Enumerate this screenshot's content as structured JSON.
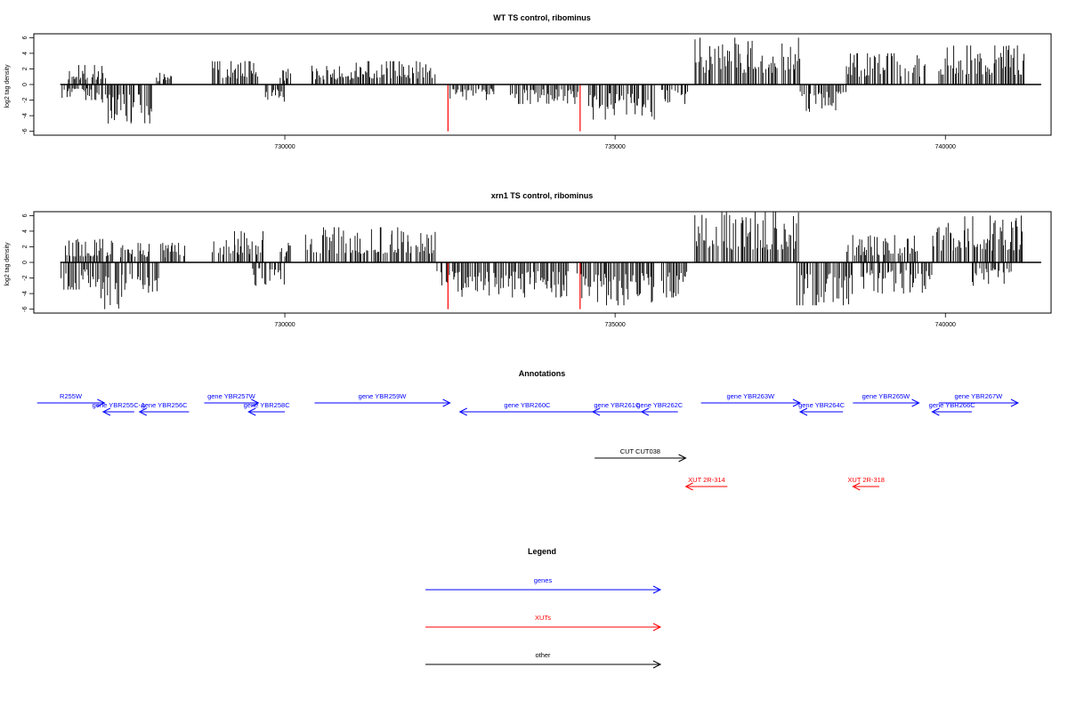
{
  "chart_data": [
    {
      "type": "bar",
      "title": "WT TS control, ribominus",
      "ylabel": "log2 tag density",
      "xlabel": "",
      "xlim": [
        726200,
        741600
      ],
      "ylim": [
        -6.5,
        6.5
      ],
      "x_ticks": [
        730000,
        735000,
        740000
      ],
      "x_tick_labels": [
        "730000",
        "735000",
        "740000"
      ],
      "y_ticks": [
        -6,
        -4,
        -2,
        0,
        2,
        4,
        6
      ],
      "y_tick_labels": [
        "-6",
        "-4",
        "-2",
        "0",
        "2",
        "4",
        "6"
      ],
      "baseline": {
        "from": 726600,
        "to": 741450
      },
      "series": [
        {
          "strand": "plus",
          "segments": [
            {
              "from": 726700,
              "to": 727300,
              "max": 2.5
            },
            {
              "from": 728050,
              "to": 728300,
              "max": 1.5
            },
            {
              "from": 728900,
              "to": 729600,
              "max": 3.0
            },
            {
              "from": 729900,
              "to": 730100,
              "max": 2.0
            },
            {
              "from": 730400,
              "to": 731000,
              "max": 2.5
            },
            {
              "from": 731000,
              "to": 732300,
              "max": 3.0
            },
            {
              "from": 736200,
              "to": 737800,
              "max": 6.0
            },
            {
              "from": 738500,
              "to": 739700,
              "max": 4.0
            },
            {
              "from": 739900,
              "to": 741200,
              "max": 5.0
            }
          ]
        },
        {
          "strand": "minus",
          "segments": [
            {
              "from": 726600,
              "to": 727200,
              "max": 2.0
            },
            {
              "from": 727200,
              "to": 728000,
              "max": 5.0
            },
            {
              "from": 729700,
              "to": 730000,
              "max": 2.5
            },
            {
              "from": 732500,
              "to": 733200,
              "max": 2.0
            },
            {
              "from": 733400,
              "to": 734500,
              "max": 2.5
            },
            {
              "from": 734600,
              "to": 735600,
              "max": 4.5
            },
            {
              "from": 735700,
              "to": 736100,
              "max": 2.5
            },
            {
              "from": 737800,
              "to": 738500,
              "max": 3.5
            }
          ]
        }
      ],
      "red_lines": [
        {
          "x": 732470,
          "y": -6.0
        },
        {
          "x": 734470,
          "y": -6.0
        }
      ],
      "seed": 11
    },
    {
      "type": "bar",
      "title": "xrn1 TS control, ribominus",
      "ylabel": "log2 tag density",
      "xlabel": "",
      "xlim": [
        726200,
        741600
      ],
      "ylim": [
        -6.5,
        6.5
      ],
      "x_ticks": [
        730000,
        735000,
        740000
      ],
      "x_tick_labels": [
        "730000",
        "735000",
        "740000"
      ],
      "y_ticks": [
        -6,
        -4,
        -2,
        0,
        2,
        4,
        6
      ],
      "y_tick_labels": [
        "-6",
        "-4",
        "-2",
        "0",
        "2",
        "4",
        "6"
      ],
      "baseline": {
        "from": 726600,
        "to": 741450
      },
      "series": [
        {
          "strand": "plus",
          "segments": [
            {
              "from": 726650,
              "to": 727400,
              "max": 3.0
            },
            {
              "from": 727500,
              "to": 728000,
              "max": 2.5
            },
            {
              "from": 728100,
              "to": 728500,
              "max": 2.5
            },
            {
              "from": 728900,
              "to": 729700,
              "max": 4.0
            },
            {
              "from": 729900,
              "to": 730100,
              "max": 2.5
            },
            {
              "from": 730300,
              "to": 732300,
              "max": 4.5
            },
            {
              "from": 736200,
              "to": 737800,
              "max": 6.5
            },
            {
              "from": 738500,
              "to": 739600,
              "max": 3.5
            },
            {
              "from": 739800,
              "to": 741200,
              "max": 6.0
            }
          ]
        },
        {
          "strand": "minus",
          "segments": [
            {
              "from": 726600,
              "to": 727100,
              "max": 3.5
            },
            {
              "from": 727100,
              "to": 728100,
              "max": 6.0
            },
            {
              "from": 729500,
              "to": 730000,
              "max": 3.0
            },
            {
              "from": 732300,
              "to": 734300,
              "max": 4.5
            },
            {
              "from": 734400,
              "to": 735600,
              "max": 5.5
            },
            {
              "from": 735700,
              "to": 736100,
              "max": 4.5
            },
            {
              "from": 737700,
              "to": 738600,
              "max": 5.5
            },
            {
              "from": 738700,
              "to": 739800,
              "max": 4.0
            },
            {
              "from": 740400,
              "to": 741000,
              "max": 3.0
            }
          ]
        }
      ],
      "red_lines": [
        {
          "x": 732470,
          "y": -6.0
        },
        {
          "x": 734470,
          "y": -6.0
        }
      ],
      "seed": 29
    }
  ],
  "annotations": {
    "title": "Annotations",
    "xlim": [
      726200,
      741600
    ],
    "features": [
      {
        "label": "R255W",
        "from": 726250,
        "to": 727270,
        "strand": "+",
        "track": 0,
        "color": "#0000ff"
      },
      {
        "label": "gene YBR255C-A",
        "from": 727250,
        "to": 727720,
        "strand": "-",
        "track": 1,
        "color": "#0000ff"
      },
      {
        "label": "gene YBR256C",
        "from": 727800,
        "to": 728550,
        "strand": "-",
        "track": 1,
        "color": "#0000ff"
      },
      {
        "label": "gene YBR257W",
        "from": 728780,
        "to": 729600,
        "strand": "+",
        "track": 0,
        "color": "#0000ff"
      },
      {
        "label": "gene YBR258C",
        "from": 729450,
        "to": 730000,
        "strand": "-",
        "track": 1,
        "color": "#0000ff"
      },
      {
        "label": "gene YBR259W",
        "from": 730450,
        "to": 732500,
        "strand": "+",
        "track": 0,
        "color": "#0000ff"
      },
      {
        "label": "gene YBR260C",
        "from": 732650,
        "to": 734690,
        "strand": "-",
        "track": 2,
        "color": "#0000ff"
      },
      {
        "label": "gene YBR261C",
        "from": 734660,
        "to": 735400,
        "strand": "-",
        "track": 1,
        "color": "#0000ff"
      },
      {
        "label": "gene YBR262C",
        "from": 735400,
        "to": 735950,
        "strand": "-",
        "track": 1,
        "color": "#0000ff"
      },
      {
        "label": "gene YBR263W",
        "from": 736300,
        "to": 737800,
        "strand": "+",
        "track": 0,
        "color": "#0000ff"
      },
      {
        "label": "gene YBR264C",
        "from": 737800,
        "to": 738450,
        "strand": "-",
        "track": 1,
        "color": "#0000ff"
      },
      {
        "label": "gene YBR265W",
        "from": 738600,
        "to": 739600,
        "strand": "+",
        "track": 0,
        "color": "#0000ff"
      },
      {
        "label": "gene YBR266C",
        "from": 739800,
        "to": 740400,
        "strand": "-",
        "track": 1,
        "color": "#0000ff"
      },
      {
        "label": "gene YBR267W",
        "from": 739900,
        "to": 741100,
        "strand": "+",
        "track": 0,
        "color": "#0000ff"
      },
      {
        "label": "CUT CUT038",
        "from": 734690,
        "to": 736070,
        "strand": "+",
        "track": 4,
        "color": "#000000"
      },
      {
        "label": "XUT 2R-314",
        "from": 736070,
        "to": 736700,
        "strand": "-",
        "track": 5,
        "color": "#ff0000"
      },
      {
        "label": "XUT 2R-318",
        "from": 738600,
        "to": 739000,
        "strand": "-",
        "track": 5,
        "color": "#ff0000"
      }
    ]
  },
  "legend": {
    "title": "Legend",
    "items": [
      {
        "label": "genes",
        "color": "#0000ff"
      },
      {
        "label": "XUTs",
        "color": "#ff0000"
      },
      {
        "label": "other",
        "color": "#000000"
      }
    ]
  }
}
